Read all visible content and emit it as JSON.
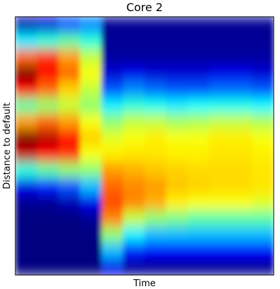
{
  "chart_data": {
    "type": "heatmap",
    "title": "Core 2",
    "x_label": "Time",
    "y_label": "Distance to default",
    "colormap": "jet",
    "values": [
      [
        0.05,
        0.08,
        0.2,
        0.25,
        0.02,
        0.02,
        0.02,
        0.02,
        0.02,
        0.02,
        0.02,
        0.02
      ],
      [
        0.35,
        0.4,
        0.45,
        0.4,
        0.02,
        0.02,
        0.02,
        0.02,
        0.02,
        0.02,
        0.02,
        0.02
      ],
      [
        0.75,
        0.8,
        0.7,
        0.55,
        0.03,
        0.03,
        0.03,
        0.03,
        0.03,
        0.03,
        0.03,
        0.03
      ],
      [
        0.97,
        0.85,
        0.75,
        0.6,
        0.08,
        0.1,
        0.08,
        0.08,
        0.08,
        0.1,
        0.1,
        0.08
      ],
      [
        0.85,
        0.75,
        0.65,
        0.55,
        0.2,
        0.25,
        0.22,
        0.2,
        0.2,
        0.22,
        0.22,
        0.2
      ],
      [
        0.45,
        0.5,
        0.55,
        0.5,
        0.35,
        0.4,
        0.38,
        0.35,
        0.37,
        0.38,
        0.38,
        0.36
      ],
      [
        0.7,
        0.75,
        0.7,
        0.6,
        0.5,
        0.55,
        0.55,
        0.52,
        0.53,
        0.55,
        0.55,
        0.53
      ],
      [
        0.97,
        0.92,
        0.85,
        0.65,
        0.58,
        0.6,
        0.62,
        0.6,
        0.6,
        0.62,
        0.62,
        0.6
      ],
      [
        0.9,
        0.85,
        0.8,
        0.6,
        0.62,
        0.63,
        0.63,
        0.62,
        0.62,
        0.63,
        0.63,
        0.62
      ],
      [
        0.4,
        0.45,
        0.5,
        0.5,
        0.7,
        0.68,
        0.66,
        0.65,
        0.64,
        0.64,
        0.64,
        0.63
      ],
      [
        0.1,
        0.15,
        0.2,
        0.3,
        0.75,
        0.72,
        0.7,
        0.66,
        0.65,
        0.64,
        0.64,
        0.63
      ],
      [
        0.02,
        0.02,
        0.05,
        0.1,
        0.78,
        0.72,
        0.68,
        0.62,
        0.6,
        0.6,
        0.6,
        0.58
      ],
      [
        0,
        0,
        0,
        0.02,
        0.72,
        0.55,
        0.5,
        0.48,
        0.45,
        0.45,
        0.45,
        0.45
      ],
      [
        0,
        0,
        0,
        0,
        0.5,
        0.35,
        0.3,
        0.3,
        0.3,
        0.3,
        0.3,
        0.3
      ],
      [
        0,
        0,
        0,
        0,
        0.3,
        0.15,
        0.12,
        0.12,
        0.12,
        0.12,
        0.12,
        0.12
      ],
      [
        0,
        0,
        0,
        0,
        0.1,
        0.03,
        0.02,
        0.02,
        0.02,
        0.02,
        0.02,
        0.02
      ]
    ]
  }
}
